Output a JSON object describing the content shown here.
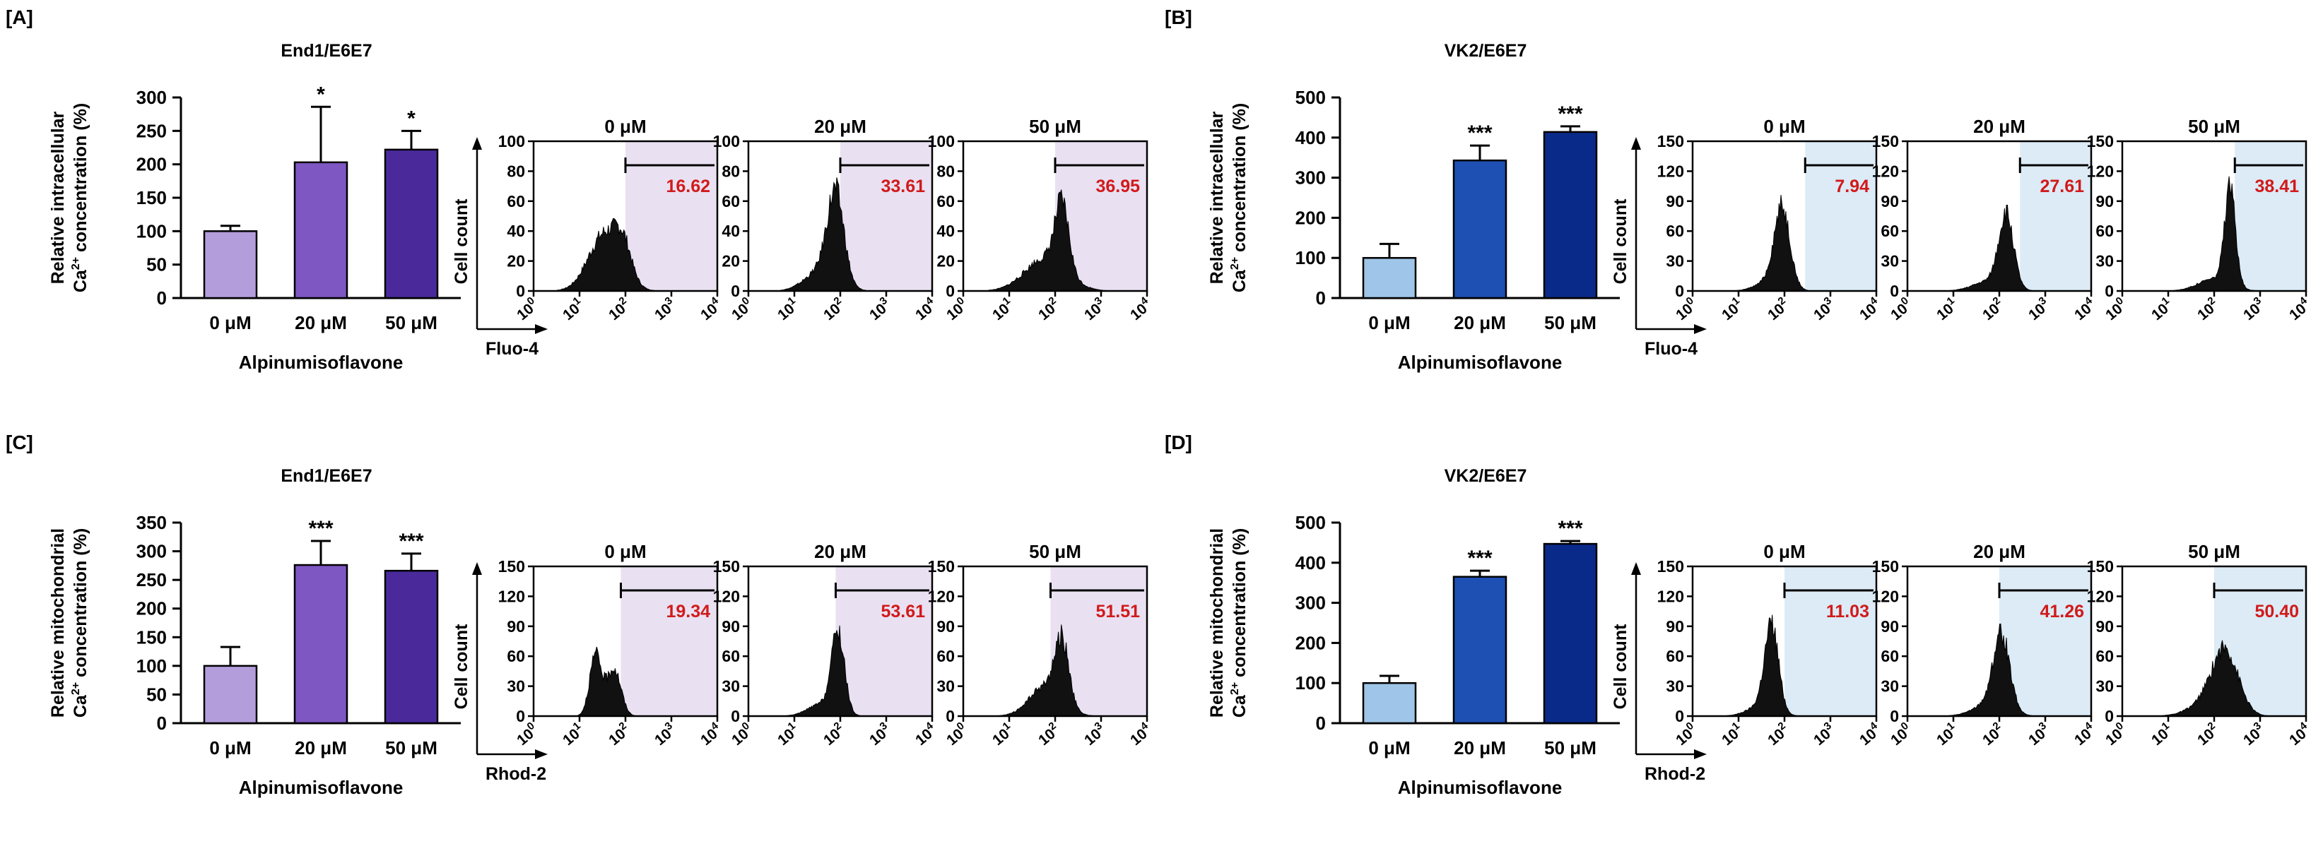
{
  "colors": {
    "bar_light_purple": "#b39ddb",
    "bar_mid_purple": "#7e57c2",
    "bar_dark_purple": "#4a2a9a",
    "bar_light_blue": "#9fc5e8",
    "bar_mid_blue": "#1e4fb3",
    "bar_dark_blue": "#0a2a8a",
    "gate_purple": "#e9e1f2",
    "gate_blue": "#dcebf6",
    "gate_text": "#d11a1a"
  },
  "chart_data": [
    {
      "panel": "A",
      "panel_label": "[A]",
      "type": "bar",
      "title": "End1/E6E7",
      "ylabel_line1": "Relative intracellular",
      "ylabel_line2_base": "Ca",
      "ylabel_line2_sup": "2+",
      "ylabel_line2_rest": " concentration (%)",
      "xlabel": "Alpinumisoflavone",
      "categories": [
        "0 μM",
        "20 μM",
        "50 μM"
      ],
      "values": [
        100,
        203,
        222
      ],
      "errors": [
        8,
        83,
        28
      ],
      "significance": [
        "",
        "*",
        "*"
      ],
      "ylim": [
        0,
        300
      ],
      "yticks": [
        0,
        50,
        100,
        150,
        200,
        250,
        300
      ],
      "palette": "purple",
      "histograms": {
        "type": "histogram",
        "ylabel": "Cell count",
        "xlabel": "Fluo-4",
        "ylim": [
          0,
          100
        ],
        "yticks": [
          0,
          20,
          40,
          60,
          80,
          100
        ],
        "xticks": [
          "10",
          "10",
          "10",
          "10",
          "10"
        ],
        "xtick_exponents": [
          "0",
          "1",
          "2",
          "3",
          "4"
        ],
        "panels": [
          {
            "title": "0 μM",
            "gate_value": "16.62",
            "gate_start_log": 2.0,
            "peaks": [
              {
                "center": 1.55,
                "width": 0.35,
                "height": 38
              },
              {
                "center": 1.95,
                "width": 0.18,
                "height": 20
              }
            ]
          },
          {
            "title": "20 μM",
            "gate_value": "33.61",
            "gate_start_log": 2.0,
            "peaks": [
              {
                "center": 1.9,
                "width": 0.18,
                "height": 58
              },
              {
                "center": 1.6,
                "width": 0.35,
                "height": 14
              }
            ]
          },
          {
            "title": "50 μM",
            "gate_value": "36.95",
            "gate_start_log": 2.0,
            "peaks": [
              {
                "center": 2.15,
                "width": 0.15,
                "height": 44
              },
              {
                "center": 1.8,
                "width": 0.45,
                "height": 22
              }
            ]
          }
        ]
      }
    },
    {
      "panel": "B",
      "panel_label": "[B]",
      "type": "bar",
      "title": "VK2/E6E7",
      "ylabel_line1": "Relative intracellular",
      "ylabel_line2_base": "Ca",
      "ylabel_line2_sup": "2+",
      "ylabel_line2_rest": " concentration (%)",
      "xlabel": "Alpinumisoflavone",
      "categories": [
        "0 μM",
        "20 μM",
        "50 μM"
      ],
      "values": [
        100,
        343,
        414
      ],
      "errors": [
        35,
        37,
        14
      ],
      "significance": [
        "",
        "***",
        "***"
      ],
      "ylim": [
        0,
        500
      ],
      "yticks": [
        0,
        100,
        200,
        300,
        400,
        500
      ],
      "palette": "blue",
      "histograms": {
        "type": "histogram",
        "ylabel": "Cell count",
        "xlabel": "Fluo-4",
        "ylim": [
          0,
          150
        ],
        "yticks": [
          0,
          30,
          60,
          90,
          120,
          150
        ],
        "xticks": [
          "10",
          "10",
          "10",
          "10",
          "10"
        ],
        "xtick_exponents": [
          "0",
          "1",
          "2",
          "3",
          "4"
        ],
        "panels": [
          {
            "title": "0 μM",
            "gate_value": "7.94",
            "gate_start_log": 2.45,
            "peaks": [
              {
                "center": 1.95,
                "width": 0.17,
                "height": 78
              },
              {
                "center": 1.7,
                "width": 0.3,
                "height": 10
              }
            ]
          },
          {
            "title": "20 μM",
            "gate_value": "27.61",
            "gate_start_log": 2.45,
            "peaks": [
              {
                "center": 2.15,
                "width": 0.16,
                "height": 72
              },
              {
                "center": 1.8,
                "width": 0.35,
                "height": 10
              }
            ]
          },
          {
            "title": "50 μM",
            "gate_value": "38.41",
            "gate_start_log": 2.45,
            "peaks": [
              {
                "center": 2.35,
                "width": 0.12,
                "height": 95
              },
              {
                "center": 2.0,
                "width": 0.35,
                "height": 12
              }
            ]
          }
        ]
      }
    },
    {
      "panel": "C",
      "panel_label": "[C]",
      "type": "bar",
      "title": "End1/E6E7",
      "ylabel_line1": "Relative mitochondrial",
      "ylabel_line2_base": "Ca",
      "ylabel_line2_sup": "2+",
      "ylabel_line2_rest": " concentration (%)",
      "xlabel": "Alpinumisoflavone",
      "categories": [
        "0 μM",
        "20 μM",
        "50 μM"
      ],
      "values": [
        100,
        276,
        266
      ],
      "errors": [
        33,
        42,
        30
      ],
      "significance": [
        "",
        "***",
        "***"
      ],
      "ylim": [
        0,
        350
      ],
      "yticks": [
        0,
        50,
        100,
        150,
        200,
        250,
        300,
        350
      ],
      "palette": "purple",
      "histograms": {
        "type": "histogram",
        "ylabel": "Cell count",
        "xlabel": "Rhod-2",
        "ylim": [
          0,
          150
        ],
        "yticks": [
          0,
          30,
          60,
          90,
          120,
          150
        ],
        "xticks": [
          "10",
          "10",
          "10",
          "10",
          "10"
        ],
        "xtick_exponents": [
          "0",
          "1",
          "2",
          "3",
          "4"
        ],
        "panels": [
          {
            "title": "0 μM",
            "gate_value": "19.34",
            "gate_start_log": 1.9,
            "peaks": [
              {
                "center": 1.35,
                "width": 0.13,
                "height": 60
              },
              {
                "center": 1.75,
                "width": 0.15,
                "height": 48
              }
            ]
          },
          {
            "title": "20 μM",
            "gate_value": "53.61",
            "gate_start_log": 1.9,
            "peaks": [
              {
                "center": 1.95,
                "width": 0.14,
                "height": 80
              },
              {
                "center": 1.6,
                "width": 0.3,
                "height": 12
              }
            ]
          },
          {
            "title": "50 μM",
            "gate_value": "51.51",
            "gate_start_log": 1.9,
            "peaks": [
              {
                "center": 2.15,
                "width": 0.15,
                "height": 62
              },
              {
                "center": 1.8,
                "width": 0.35,
                "height": 30
              }
            ]
          }
        ]
      }
    },
    {
      "panel": "D",
      "panel_label": "[D]",
      "type": "bar",
      "title": "VK2/E6E7",
      "ylabel_line1": "Relative mitochondrial",
      "ylabel_line2_base": "Ca",
      "ylabel_line2_sup": "2+",
      "ylabel_line2_rest": " concentration (%)",
      "xlabel": "Alpinumisoflavone",
      "categories": [
        "0 μM",
        "20 μM",
        "50 μM"
      ],
      "values": [
        100,
        365,
        447
      ],
      "errors": [
        18,
        15,
        7
      ],
      "significance": [
        "",
        "***",
        "***"
      ],
      "ylim": [
        0,
        500
      ],
      "yticks": [
        0,
        100,
        200,
        300,
        400,
        500
      ],
      "palette": "blue",
      "histograms": {
        "type": "histogram",
        "ylabel": "Cell count",
        "xlabel": "Rhod-2",
        "ylim": [
          0,
          150
        ],
        "yticks": [
          0,
          30,
          60,
          90,
          120,
          150
        ],
        "xticks": [
          "10",
          "10",
          "10",
          "10",
          "10"
        ],
        "xtick_exponents": [
          "0",
          "1",
          "2",
          "3",
          "4"
        ],
        "panels": [
          {
            "title": "0 μM",
            "gate_value": "11.03",
            "gate_start_log": 2.0,
            "peaks": [
              {
                "center": 1.72,
                "width": 0.15,
                "height": 84
              },
              {
                "center": 1.5,
                "width": 0.3,
                "height": 10
              }
            ]
          },
          {
            "title": "20 μM",
            "gate_value": "41.26",
            "gate_start_log": 2.0,
            "peaks": [
              {
                "center": 2.05,
                "width": 0.18,
                "height": 74
              },
              {
                "center": 1.8,
                "width": 0.35,
                "height": 12
              }
            ]
          },
          {
            "title": "50 μM",
            "gate_value": "50.40",
            "gate_start_log": 2.0,
            "peaks": [
              {
                "center": 2.25,
                "width": 0.28,
                "height": 58
              },
              {
                "center": 1.9,
                "width": 0.4,
                "height": 14
              }
            ]
          }
        ]
      }
    }
  ]
}
